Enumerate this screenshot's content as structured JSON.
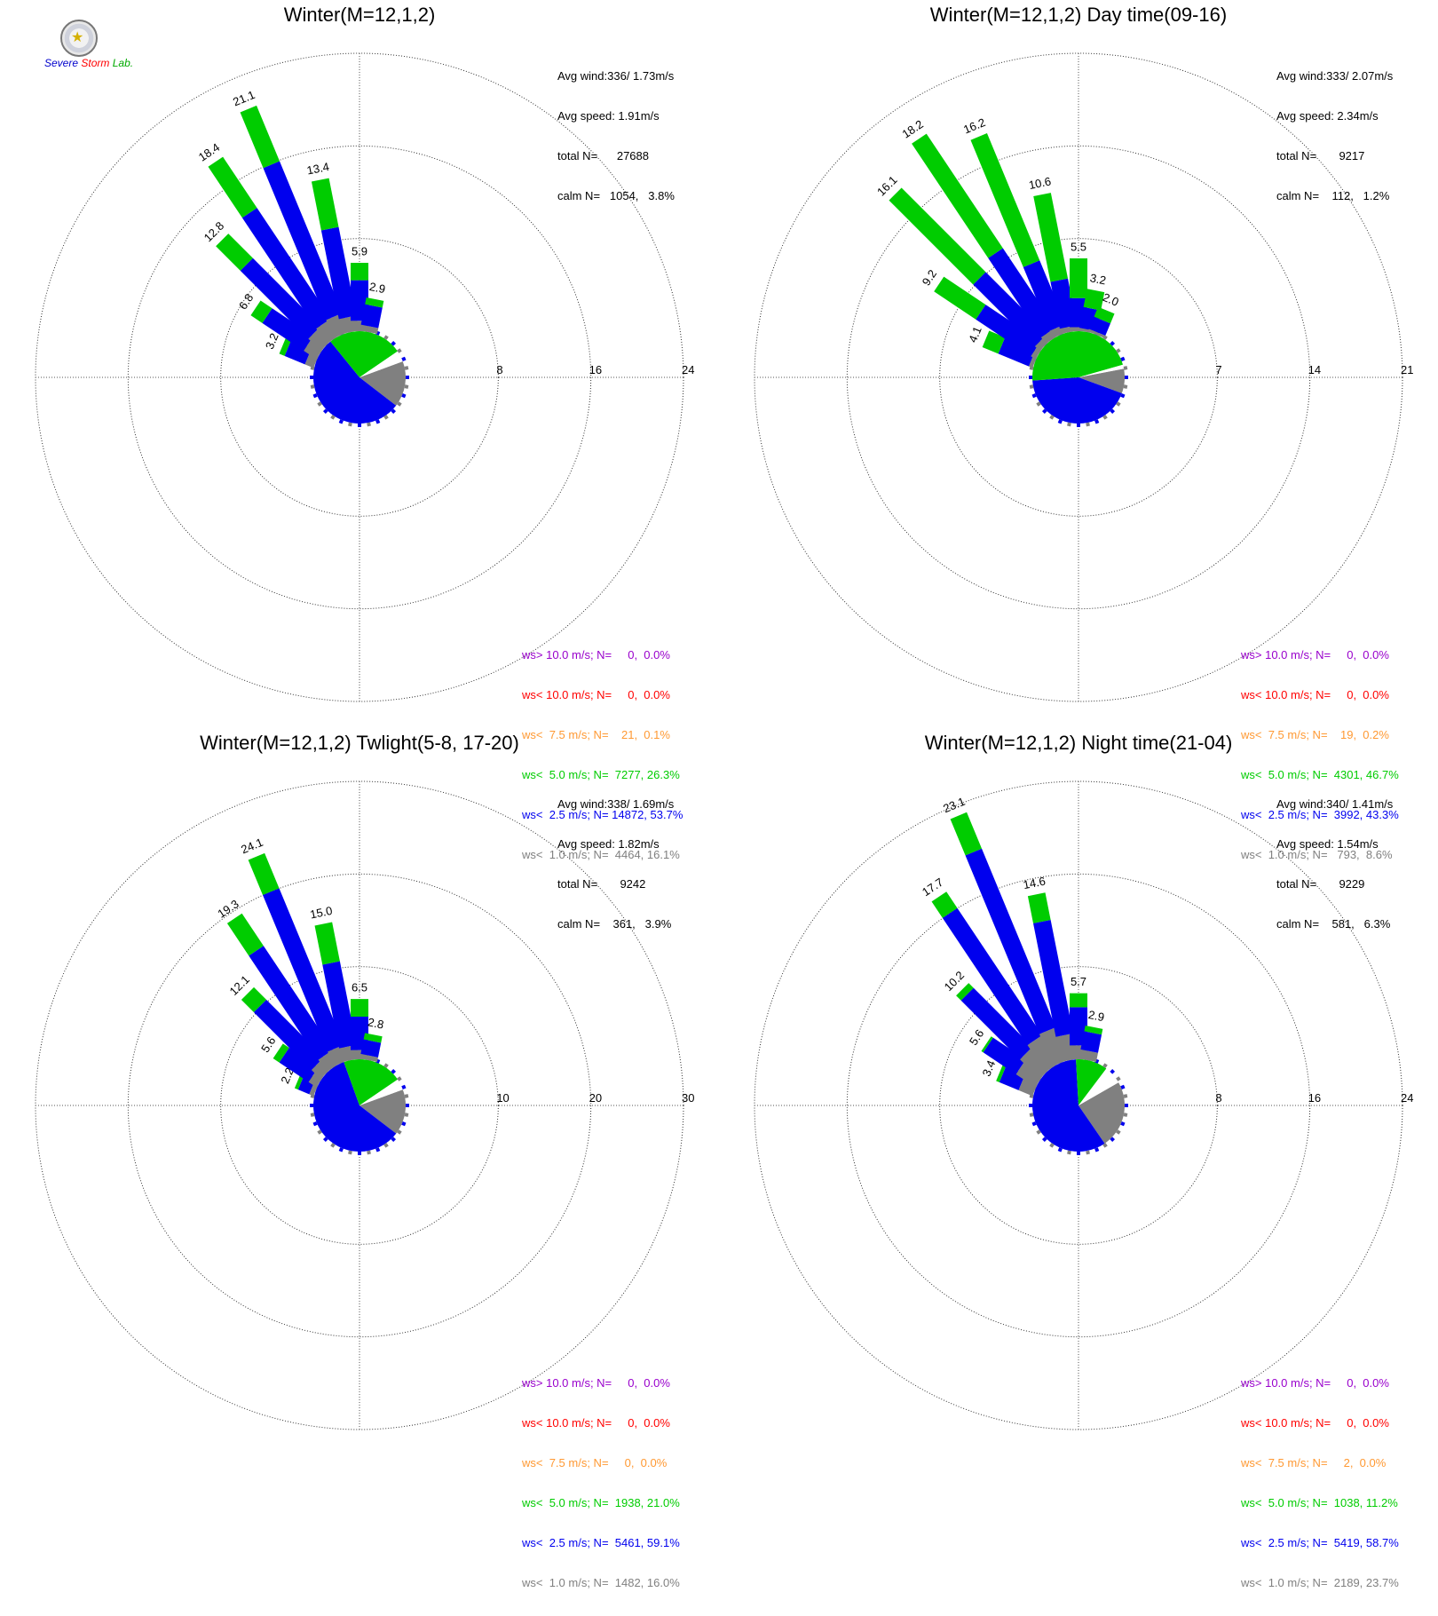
{
  "logo": {
    "part1": "Severe",
    "part2": "Storm",
    "part3": "Lab."
  },
  "colors": {
    "violet": "#9900cc",
    "red": "#ff0000",
    "orange": "#ff9933",
    "green": "#00cc00",
    "blue": "#0000ee",
    "gray": "#808080"
  },
  "legend_colors": [
    "#9900cc",
    "#ff0000",
    "#ff9933",
    "#00cc00",
    "#0000ee",
    "#808080"
  ],
  "panels": [
    {
      "title": "Winter(M=12,1,2)",
      "stats": [
        "Avg wind:336/ 1.73m/s",
        "Avg speed: 1.91m/s",
        "total N=      27688",
        "calm N=   1054,   3.8%"
      ],
      "legend": [
        "ws> 10.0 m/s; N=     0,  0.0%",
        "ws< 10.0 m/s; N=     0,  0.0%",
        "ws<  7.5 m/s; N=    21,  0.1%",
        "ws<  5.0 m/s; N=  7277, 26.3%",
        "ws<  2.5 m/s; N= 14872, 53.7%",
        "ws<  1.0 m/s; N=  4464, 16.1%"
      ]
    },
    {
      "title": "Winter(M=12,1,2) Day time(09-16)",
      "stats": [
        "Avg wind:333/ 2.07m/s",
        "Avg speed: 2.34m/s",
        "total N=       9217",
        "calm N=    112,   1.2%"
      ],
      "legend": [
        "ws> 10.0 m/s; N=     0,  0.0%",
        "ws< 10.0 m/s; N=     0,  0.0%",
        "ws<  7.5 m/s; N=    19,  0.2%",
        "ws<  5.0 m/s; N=  4301, 46.7%",
        "ws<  2.5 m/s; N=  3992, 43.3%",
        "ws<  1.0 m/s; N=   793,  8.6%"
      ]
    },
    {
      "title": "Winter(M=12,1,2) Twlight(5-8, 17-20)",
      "stats": [
        "Avg wind:338/ 1.69m/s",
        "Avg speed: 1.82m/s",
        "total N=       9242",
        "calm N=    361,   3.9%"
      ],
      "legend": [
        "ws> 10.0 m/s; N=     0,  0.0%",
        "ws< 10.0 m/s; N=     0,  0.0%",
        "ws<  7.5 m/s; N=     0,  0.0%",
        "ws<  5.0 m/s; N=  1938, 21.0%",
        "ws<  2.5 m/s; N=  5461, 59.1%",
        "ws<  1.0 m/s; N=  1482, 16.0%"
      ]
    },
    {
      "title": "Winter(M=12,1,2) Night time(21-04)",
      "stats": [
        "Avg wind:340/ 1.41m/s",
        "Avg speed: 1.54m/s",
        "total N=       9229",
        "calm N=    581,   6.3%"
      ],
      "legend": [
        "ws> 10.0 m/s; N=     0,  0.0%",
        "ws< 10.0 m/s; N=     0,  0.0%",
        "ws<  7.5 m/s; N=     2,  0.0%",
        "ws<  5.0 m/s; N=  1038, 11.2%",
        "ws<  2.5 m/s; N=  5419, 58.7%",
        "ws<  1.0 m/s; N=  2189, 23.7%"
      ]
    }
  ],
  "chart_data": [
    {
      "type": "wind-rose",
      "title": "Winter(M=12,1,2)",
      "rings": [
        8,
        16,
        24
      ],
      "ring_labels": [
        "8",
        "16",
        "24"
      ],
      "calm_pie": {
        "gray": 16.1,
        "blue": 53.7,
        "green": 26.3,
        "other": 3.9
      },
      "bars": [
        {
          "dir": 292.5,
          "total": 3.2,
          "gray": 0.8,
          "blue": 1.9,
          "green": 0.5
        },
        {
          "dir": 303.75,
          "total": 6.8,
          "gray": 1.3,
          "blue": 4.3,
          "green": 1.2
        },
        {
          "dir": 315,
          "total": 12.8,
          "gray": 1.5,
          "blue": 8.3,
          "green": 3.0
        },
        {
          "dir": 326.25,
          "total": 18.4,
          "gray": 1.6,
          "blue": 11.5,
          "green": 5.3
        },
        {
          "dir": 337.5,
          "total": 21.1,
          "gray": 1.7,
          "blue": 14.2,
          "green": 5.2
        },
        {
          "dir": 348.75,
          "total": 13.4,
          "gray": 1.3,
          "blue": 7.8,
          "green": 4.3
        },
        {
          "dir": 0,
          "total": 5.9,
          "gray": 0.9,
          "blue": 3.5,
          "green": 1.5
        },
        {
          "dir": 11.25,
          "total": 2.9,
          "gray": 0.5,
          "blue": 1.8,
          "green": 0.6
        }
      ],
      "bar_labels": [
        "3.2",
        "6.8",
        "12.8",
        "18.4",
        "21.1",
        "13.4",
        "5.9",
        "2.9"
      ]
    },
    {
      "type": "wind-rose",
      "title": "Winter(M=12,1,2) Day time(09-16)",
      "rings": [
        7,
        14,
        21
      ],
      "ring_labels": [
        "7",
        "14",
        "21"
      ],
      "calm_pie": {
        "gray": 8.6,
        "blue": 43.3,
        "green": 46.7,
        "other": 1.4
      },
      "bars": [
        {
          "dir": 292.5,
          "total": 4.1,
          "gray": 0.3,
          "blue": 2.5,
          "green": 1.3
        },
        {
          "dir": 303.75,
          "total": 9.2,
          "gray": 0.4,
          "blue": 5.0,
          "green": 3.8
        },
        {
          "dir": 315,
          "total": 16.1,
          "gray": 0.5,
          "blue": 6.6,
          "green": 9.0
        },
        {
          "dir": 326.25,
          "total": 18.2,
          "gray": 0.6,
          "blue": 7.2,
          "green": 10.4
        },
        {
          "dir": 337.5,
          "total": 16.2,
          "gray": 0.6,
          "blue": 5.2,
          "green": 10.4
        },
        {
          "dir": 348.75,
          "total": 10.6,
          "gray": 0.4,
          "blue": 3.6,
          "green": 6.6
        },
        {
          "dir": 0,
          "total": 5.5,
          "gray": 0.3,
          "blue": 2.2,
          "green": 3.0
        },
        {
          "dir": 11.25,
          "total": 3.2,
          "gray": 0.2,
          "blue": 1.6,
          "green": 1.4
        },
        {
          "dir": 22.5,
          "total": 2.0,
          "gray": 0.2,
          "blue": 1.0,
          "green": 0.8
        }
      ],
      "bar_labels": [
        "4.1",
        "9.2",
        "16.1",
        "18.2",
        "16.2",
        "10.6",
        "5.5",
        "3.2",
        "2.0"
      ]
    },
    {
      "type": "wind-rose",
      "title": "Winter(M=12,1,2) Twlight(5-8, 17-20)",
      "rings": [
        10,
        20,
        30
      ],
      "ring_labels": [
        "10",
        "20",
        "30"
      ],
      "calm_pie": {
        "gray": 16.0,
        "blue": 59.1,
        "green": 21.0,
        "other": 3.9
      },
      "bars": [
        {
          "dir": 292.5,
          "total": 2.2,
          "gray": 0.5,
          "blue": 1.3,
          "green": 0.4
        },
        {
          "dir": 303.75,
          "total": 5.6,
          "gray": 1.0,
          "blue": 3.8,
          "green": 0.8
        },
        {
          "dir": 315,
          "total": 12.1,
          "gray": 1.4,
          "blue": 8.8,
          "green": 1.9
        },
        {
          "dir": 326.25,
          "total": 19.3,
          "gray": 1.6,
          "blue": 13.5,
          "green": 4.2
        },
        {
          "dir": 337.5,
          "total": 24.1,
          "gray": 1.7,
          "blue": 18.3,
          "green": 4.1
        },
        {
          "dir": 348.75,
          "total": 15.0,
          "gray": 1.5,
          "blue": 9.2,
          "green": 4.3
        },
        {
          "dir": 0,
          "total": 6.5,
          "gray": 1.0,
          "blue": 3.6,
          "green": 1.9
        },
        {
          "dir": 11.25,
          "total": 2.8,
          "gray": 0.5,
          "blue": 1.6,
          "green": 0.7
        }
      ],
      "bar_labels": [
        "2.2",
        "5.6",
        "12.1",
        "19.3",
        "24.1",
        "15.0",
        "6.5",
        "2.8"
      ]
    },
    {
      "type": "wind-rose",
      "title": "Winter(M=12,1,2) Night time(21-04)",
      "rings": [
        8,
        16,
        24
      ],
      "ring_labels": [
        "8",
        "16",
        "24"
      ],
      "calm_pie": {
        "gray": 23.7,
        "blue": 58.7,
        "green": 11.2,
        "other": 6.4
      },
      "bars": [
        {
          "dir": 292.5,
          "total": 3.4,
          "gray": 1.3,
          "blue": 1.8,
          "green": 0.3
        },
        {
          "dir": 303.75,
          "total": 5.6,
          "gray": 2.0,
          "blue": 3.4,
          "green": 0.2
        },
        {
          "dir": 315,
          "total": 10.2,
          "gray": 2.4,
          "blue": 7.2,
          "green": 0.6
        },
        {
          "dir": 326.25,
          "total": 17.7,
          "gray": 2.8,
          "blue": 13.2,
          "green": 1.7
        },
        {
          "dir": 337.5,
          "total": 23.1,
          "gray": 3.0,
          "blue": 16.7,
          "green": 3.4
        },
        {
          "dir": 348.75,
          "total": 14.6,
          "gray": 2.2,
          "blue": 10.0,
          "green": 2.4
        },
        {
          "dir": 0,
          "total": 5.7,
          "gray": 1.2,
          "blue": 3.3,
          "green": 1.2
        },
        {
          "dir": 11.25,
          "total": 2.9,
          "gray": 0.8,
          "blue": 1.6,
          "green": 0.5
        }
      ],
      "bar_labels": [
        "3.4",
        "5.6",
        "10.2",
        "17.7",
        "23.1",
        "14.6",
        "5.7",
        "2.9"
      ]
    }
  ]
}
